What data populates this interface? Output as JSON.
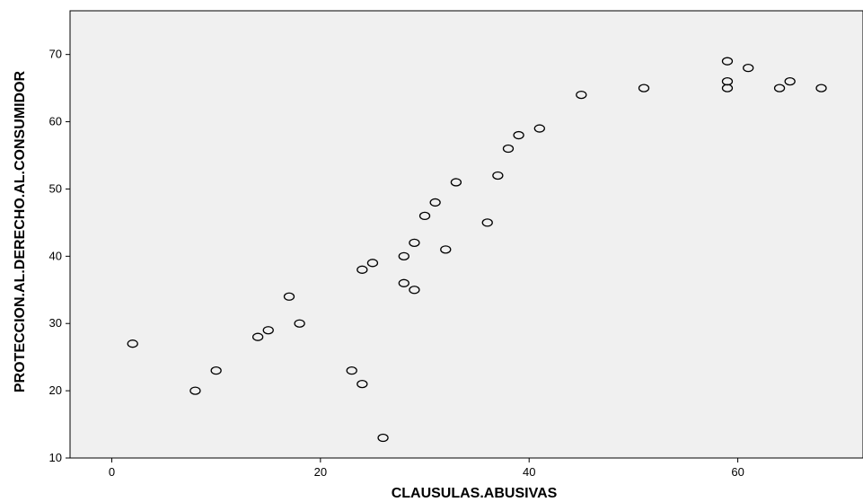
{
  "chart_data": {
    "type": "scatter",
    "title": "",
    "xlabel": "CLAUSULAS.ABUSIVAS",
    "ylabel": "PROTECCION.AL.DERECHO.AL.CONSUMIDOR",
    "xlim": [
      -4,
      72
    ],
    "ylim": [
      10,
      76.5
    ],
    "x_ticks": [
      0,
      20,
      40,
      60
    ],
    "y_ticks": [
      10,
      20,
      30,
      40,
      50,
      60,
      70
    ],
    "grid": false,
    "plot_background": "#f0f0f0",
    "marker": "open-circle",
    "marker_color": "#000000",
    "points": [
      {
        "x": 2,
        "y": 27
      },
      {
        "x": 8,
        "y": 20
      },
      {
        "x": 10,
        "y": 23
      },
      {
        "x": 14,
        "y": 28
      },
      {
        "x": 15,
        "y": 29
      },
      {
        "x": 17,
        "y": 34
      },
      {
        "x": 18,
        "y": 30
      },
      {
        "x": 23,
        "y": 23
      },
      {
        "x": 24,
        "y": 21
      },
      {
        "x": 24,
        "y": 38
      },
      {
        "x": 25,
        "y": 39
      },
      {
        "x": 26,
        "y": 13
      },
      {
        "x": 28,
        "y": 36
      },
      {
        "x": 28,
        "y": 40
      },
      {
        "x": 29,
        "y": 35
      },
      {
        "x": 29,
        "y": 42
      },
      {
        "x": 30,
        "y": 46
      },
      {
        "x": 31,
        "y": 48
      },
      {
        "x": 32,
        "y": 41
      },
      {
        "x": 33,
        "y": 51
      },
      {
        "x": 36,
        "y": 45
      },
      {
        "x": 37,
        "y": 52
      },
      {
        "x": 38,
        "y": 56
      },
      {
        "x": 39,
        "y": 58
      },
      {
        "x": 41,
        "y": 59
      },
      {
        "x": 45,
        "y": 64
      },
      {
        "x": 51,
        "y": 65
      },
      {
        "x": 59,
        "y": 69
      },
      {
        "x": 59,
        "y": 66
      },
      {
        "x": 59,
        "y": 65
      },
      {
        "x": 61,
        "y": 68
      },
      {
        "x": 64,
        "y": 65
      },
      {
        "x": 65,
        "y": 66
      },
      {
        "x": 68,
        "y": 65
      }
    ]
  }
}
